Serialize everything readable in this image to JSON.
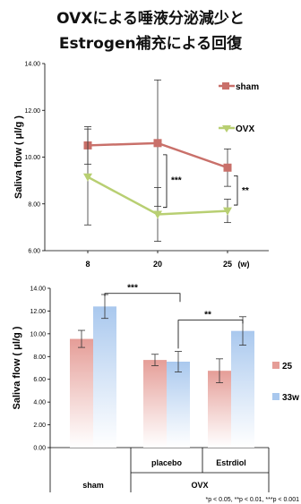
{
  "title": {
    "line1": "OVXによる唾液分泌減少と",
    "line2": "Estrogen補充による回復"
  },
  "chart_data": [
    {
      "type": "line",
      "ylabel": "Saliva flow ( μl/g )",
      "ylim": [
        6.0,
        14.0
      ],
      "yticks": [
        "6.00",
        "8.00",
        "10.00",
        "12.00",
        "14.00"
      ],
      "x": [
        "8",
        "20",
        "25"
      ],
      "x_unit": "(w)",
      "grid": false,
      "legend_position": "right",
      "series": [
        {
          "name": "sham",
          "color": "#c9706a",
          "marker": "square",
          "values": [
            10.5,
            10.6,
            9.55
          ],
          "err": [
            0.8,
            2.7,
            0.8
          ]
        },
        {
          "name": "OVX",
          "color": "#b8cf72",
          "marker": "triangle",
          "values": [
            9.15,
            7.55,
            7.7
          ],
          "err": [
            2.05,
            1.15,
            0.5
          ]
        }
      ],
      "annotations": [
        {
          "text": "***",
          "between": "sham vs OVX",
          "at": "20"
        },
        {
          "text": "**",
          "between": "sham vs OVX",
          "at": "25"
        }
      ]
    },
    {
      "type": "bar",
      "ylabel": "Saliva flow ( μl/g )",
      "ylim": [
        0.0,
        14.0
      ],
      "yticks": [
        "0.00",
        "2.00",
        "4.00",
        "6.00",
        "8.00",
        "10.00",
        "12.00",
        "14.00"
      ],
      "categories": [
        "sham",
        "placebo",
        "Estrdiol"
      ],
      "group_labels": {
        "ovx": "OVX"
      },
      "legend_position": "right",
      "series": [
        {
          "name": "25",
          "color": "#e59d97",
          "values": [
            9.55,
            7.7,
            6.75
          ],
          "err": [
            0.75,
            0.5,
            1.05
          ]
        },
        {
          "name": "33w",
          "color": "#a9c8ee",
          "values": [
            12.4,
            7.55,
            10.25
          ],
          "err": [
            1.05,
            0.9,
            1.25
          ]
        }
      ],
      "annotations": [
        {
          "text": "***",
          "between": "sham 33w vs placebo"
        },
        {
          "text": "**",
          "between": "placebo 33w vs Estrdiol 33w"
        }
      ]
    }
  ],
  "footnote": "*p < 0.05,  **p < 0.01,  ***p < 0.001"
}
